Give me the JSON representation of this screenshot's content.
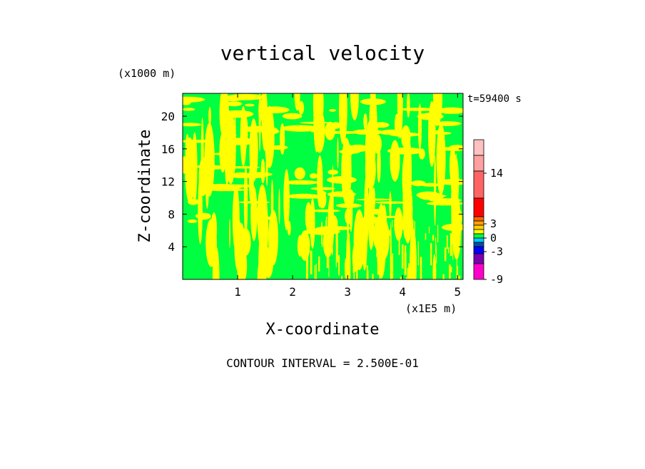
{
  "chart_data": {
    "type": "heatmap",
    "title": "vertical velocity",
    "xlabel": "X-coordinate",
    "ylabel": "Z-coordinate",
    "x_unit": "(x1E5 m)",
    "y_unit": "(x1000 m)",
    "time_label": "t=59400 s",
    "footer": "CONTOUR INTERVAL = 2.500E-01",
    "xlim": [
      0,
      5.1
    ],
    "ylim": [
      0,
      22.8
    ],
    "x_ticks": [
      "1",
      "2",
      "3",
      "4",
      "5"
    ],
    "x_tick_values": [
      1,
      2,
      3,
      4,
      5
    ],
    "y_ticks": [
      "4",
      "8",
      "12",
      "16",
      "20"
    ],
    "y_tick_values": [
      4,
      8,
      12,
      16,
      20
    ],
    "grid": false,
    "field_colors": {
      "negative_small": "#00ff40",
      "positive_small": "#ffff00"
    },
    "colorbar": {
      "labels": [
        "-9",
        "-3",
        "0",
        "3",
        "14"
      ],
      "colors": [
        "#ff00cc",
        "#7a00b0",
        "#0000ff",
        "#004fa8",
        "#00c8ff",
        "#00ff40",
        "#ffff00",
        "#ffd000",
        "#ffa000",
        "#ff6400",
        "#ff0000",
        "#ff6464",
        "#ffa0a0",
        "#ffc0c0"
      ]
    }
  }
}
